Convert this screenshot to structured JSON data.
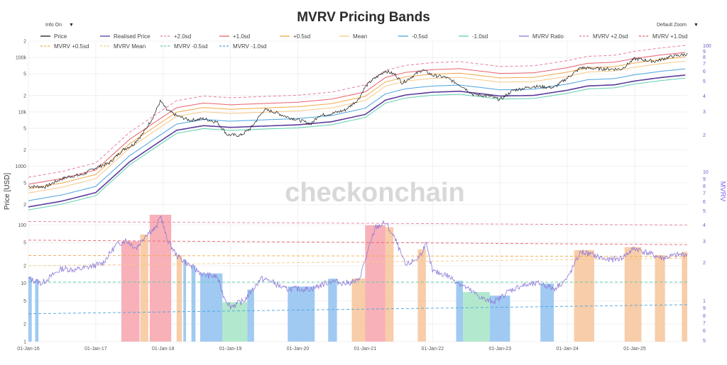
{
  "title": "MVRV Pricing Bands",
  "controls": {
    "info": "Info On",
    "zoom": "Default Zoom",
    "arrow": "▼"
  },
  "watermark": "checkonchain",
  "colors": {
    "price": "#1a1a1a",
    "realised": "#5b3c9c",
    "p2sd": "#e87ea1",
    "p1sd": "#e8606f",
    "p05sd": "#f0a94a",
    "mean": "#f5c98a",
    "m05sd": "#4aa3df",
    "m1sd": "#5fd0b1",
    "mvrv": "#8e78d8",
    "zoneRed": "#f7a3ac",
    "zoneOrange": "#f7c49a",
    "zoneBlue": "#8fc1f0",
    "zoneGreen": "#a4e4c4",
    "grid": "#ececec"
  },
  "chart_data": {
    "type": "line",
    "title": "MVRV Pricing Bands",
    "legend": [
      [
        "Price",
        "Realised Price",
        "+2.0sd",
        "+1.0sd",
        "+0.5sd",
        "Mean",
        "-0.5sd",
        "-1.0sd",
        "MVRV Ratio",
        "MVRV +2.0sd",
        "MVRV +1.0sd"
      ],
      [
        "MVRV +0.5sd",
        "MVRV Mean",
        "MVRV -0.5sd",
        "MVRV -1.0sd"
      ]
    ],
    "x_ticks": [
      "01-Jan-16",
      "01-Jan-17",
      "01-Jan-18",
      "01-Jan-19",
      "01-Jan-20",
      "01-Jan-21",
      "01-Jan-22",
      "01-Jan-23",
      "01-Jan-24",
      "01-Jan-25"
    ],
    "x_range": [
      2016.0,
      2025.78
    ],
    "price_axis": {
      "label": "Price [USD]",
      "type": "log",
      "range": [
        150,
        200000
      ],
      "ticks": [
        [
          "200",
          "2"
        ],
        [
          "500",
          "5"
        ],
        [
          "1000",
          "1000"
        ],
        [
          "2000",
          "2"
        ],
        [
          "5000",
          "5"
        ],
        [
          "10000",
          "10k"
        ],
        [
          "20000",
          "2"
        ],
        [
          "50000",
          "5"
        ],
        [
          "100000",
          "100k"
        ],
        [
          "200000",
          "2"
        ]
      ]
    },
    "mvrv_axis_bottom": {
      "type": "log",
      "range": [
        1,
        150
      ],
      "ticks": [
        [
          "2",
          "2"
        ],
        [
          "5",
          "5"
        ],
        [
          "10",
          "10"
        ],
        [
          "20",
          "2"
        ],
        [
          "50",
          "5"
        ],
        [
          "100",
          "100"
        ],
        [
          "1",
          "1"
        ]
      ]
    },
    "right_axis": {
      "label": "MVRV",
      "ticks_top": [
        "100",
        "9",
        "8",
        "7",
        "6",
        "5",
        "4",
        "3",
        "2",
        "10",
        "9",
        "8",
        "7",
        "6",
        "5"
      ],
      "ticks_bottom": [
        "4",
        "3",
        "2",
        "1",
        "9",
        "8",
        "7",
        "6",
        "5"
      ]
    },
    "price_series": {
      "x": [
        2016.0,
        2016.25,
        2016.45,
        2016.6,
        2016.8,
        2017.0,
        2017.2,
        2017.4,
        2017.55,
        2017.7,
        2017.85,
        2017.96,
        2018.05,
        2018.2,
        2018.4,
        2018.6,
        2018.8,
        2018.88,
        2018.95,
        2019.15,
        2019.3,
        2019.5,
        2019.65,
        2019.85,
        2020.0,
        2020.2,
        2020.3,
        2020.5,
        2020.7,
        2020.9,
        2021.0,
        2021.1,
        2021.3,
        2021.45,
        2021.55,
        2021.7,
        2021.85,
        2022.0,
        2022.2,
        2022.45,
        2022.6,
        2022.85,
        2023.0,
        2023.2,
        2023.5,
        2023.8,
        2024.0,
        2024.2,
        2024.5,
        2024.8,
        2025.0,
        2025.3,
        2025.55,
        2025.78
      ],
      "y": [
        430,
        420,
        560,
        650,
        700,
        950,
        1150,
        2000,
        2500,
        4000,
        8000,
        16000,
        11000,
        8500,
        7000,
        7500,
        6500,
        5000,
        3800,
        3700,
        5000,
        11000,
        10000,
        8000,
        7200,
        6000,
        8500,
        9300,
        10800,
        17000,
        29000,
        38000,
        57000,
        48000,
        34000,
        45000,
        60000,
        47000,
        43000,
        29000,
        21000,
        19500,
        16800,
        25000,
        29500,
        28000,
        42000,
        65000,
        62000,
        61000,
        95000,
        85000,
        105000,
        115000
      ]
    },
    "realised_series": {
      "x": [
        2016.0,
        2016.5,
        2017.0,
        2017.5,
        2017.9,
        2018.2,
        2018.6,
        2019.0,
        2019.5,
        2020.0,
        2020.5,
        2021.0,
        2021.3,
        2021.6,
        2022.0,
        2022.4,
        2022.8,
        2023.0,
        2023.5,
        2024.0,
        2024.3,
        2024.7,
        2025.0,
        2025.4,
        2025.78
      ],
      "y": [
        180,
        230,
        330,
        1200,
        2600,
        4600,
        5600,
        5200,
        5500,
        5800,
        6600,
        9000,
        16500,
        20500,
        23000,
        24000,
        21000,
        19600,
        20100,
        25000,
        30000,
        31500,
        37000,
        43000,
        48000
      ]
    },
    "band_multipliers": {
      "p2sd": 3.5,
      "p1sd": 2.6,
      "p05sd": 2.15,
      "mean": 1.8,
      "m05sd": 1.3,
      "m1sd": 0.88
    },
    "mvrv_series": {
      "x": [
        2016.0,
        2016.2,
        2016.4,
        2016.5,
        2016.7,
        2016.9,
        2017.1,
        2017.3,
        2017.45,
        2017.6,
        2017.75,
        2017.9,
        2017.96,
        2018.05,
        2018.2,
        2018.4,
        2018.6,
        2018.8,
        2018.9,
        2019.0,
        2019.2,
        2019.45,
        2019.6,
        2019.8,
        2020.0,
        2020.2,
        2020.5,
        2020.7,
        2020.9,
        2021.0,
        2021.15,
        2021.3,
        2021.45,
        2021.6,
        2021.8,
        2021.9,
        2022.0,
        2022.2,
        2022.4,
        2022.6,
        2022.8,
        2022.95,
        2023.1,
        2023.3,
        2023.6,
        2023.8,
        2024.0,
        2024.2,
        2024.4,
        2024.6,
        2024.8,
        2025.0,
        2025.2,
        2025.4,
        2025.6,
        2025.78
      ],
      "y": [
        12,
        10,
        15,
        18,
        17,
        19,
        22,
        45,
        55,
        40,
        70,
        90,
        150,
        60,
        30,
        20,
        14,
        13,
        6,
        4,
        5,
        12,
        11,
        8,
        8,
        8,
        11,
        10,
        11,
        25,
        90,
        110,
        55,
        20,
        28,
        48,
        16,
        14,
        10,
        7,
        5,
        5,
        7,
        9,
        10,
        8,
        12,
        35,
        30,
        25,
        27,
        40,
        33,
        27,
        30,
        32
      ]
    },
    "mvrv_bands": {
      "MVRV +2.0sd": [
        115,
        100
      ],
      "MVRV +1.0sd": [
        55,
        46
      ],
      "MVRV +0.5sd": [
        30,
        29
      ],
      "MVRV Mean": [
        20,
        27
      ],
      "MVRV -0.5sd": [
        10.5,
        10.5
      ],
      "MVRV -1.0sd": [
        3.0,
        4.3
      ]
    },
    "zones": [
      {
        "from": 2016.0,
        "to": 2016.05,
        "type": "blue"
      },
      {
        "from": 2016.1,
        "to": 2016.15,
        "type": "blue"
      },
      {
        "from": 2017.38,
        "to": 2017.65,
        "type": "red"
      },
      {
        "from": 2017.66,
        "to": 2017.78,
        "type": "orange"
      },
      {
        "from": 2017.8,
        "to": 2018.12,
        "type": "red"
      },
      {
        "from": 2018.2,
        "to": 2018.28,
        "type": "orange"
      },
      {
        "from": 2018.3,
        "to": 2018.34,
        "type": "blue"
      },
      {
        "from": 2018.42,
        "to": 2018.48,
        "type": "blue"
      },
      {
        "from": 2018.55,
        "to": 2018.88,
        "type": "blue"
      },
      {
        "from": 2018.88,
        "to": 2019.25,
        "type": "green"
      },
      {
        "from": 2019.25,
        "to": 2019.35,
        "type": "blue"
      },
      {
        "from": 2019.85,
        "to": 2020.25,
        "type": "blue"
      },
      {
        "from": 2020.45,
        "to": 2020.58,
        "type": "blue"
      },
      {
        "from": 2020.8,
        "to": 2021.0,
        "type": "orange"
      },
      {
        "from": 2021.0,
        "to": 2021.3,
        "type": "red"
      },
      {
        "from": 2021.3,
        "to": 2021.42,
        "type": "orange"
      },
      {
        "from": 2021.78,
        "to": 2021.9,
        "type": "orange"
      },
      {
        "from": 2022.35,
        "to": 2022.45,
        "type": "blue"
      },
      {
        "from": 2022.45,
        "to": 2022.85,
        "type": "green"
      },
      {
        "from": 2022.85,
        "to": 2023.15,
        "type": "blue"
      },
      {
        "from": 2023.6,
        "to": 2023.8,
        "type": "blue"
      },
      {
        "from": 2024.1,
        "to": 2024.4,
        "type": "orange"
      },
      {
        "from": 2024.85,
        "to": 2025.1,
        "type": "orange"
      },
      {
        "from": 2025.3,
        "to": 2025.45,
        "type": "orange"
      },
      {
        "from": 2025.7,
        "to": 2025.78,
        "type": "orange"
      }
    ]
  }
}
